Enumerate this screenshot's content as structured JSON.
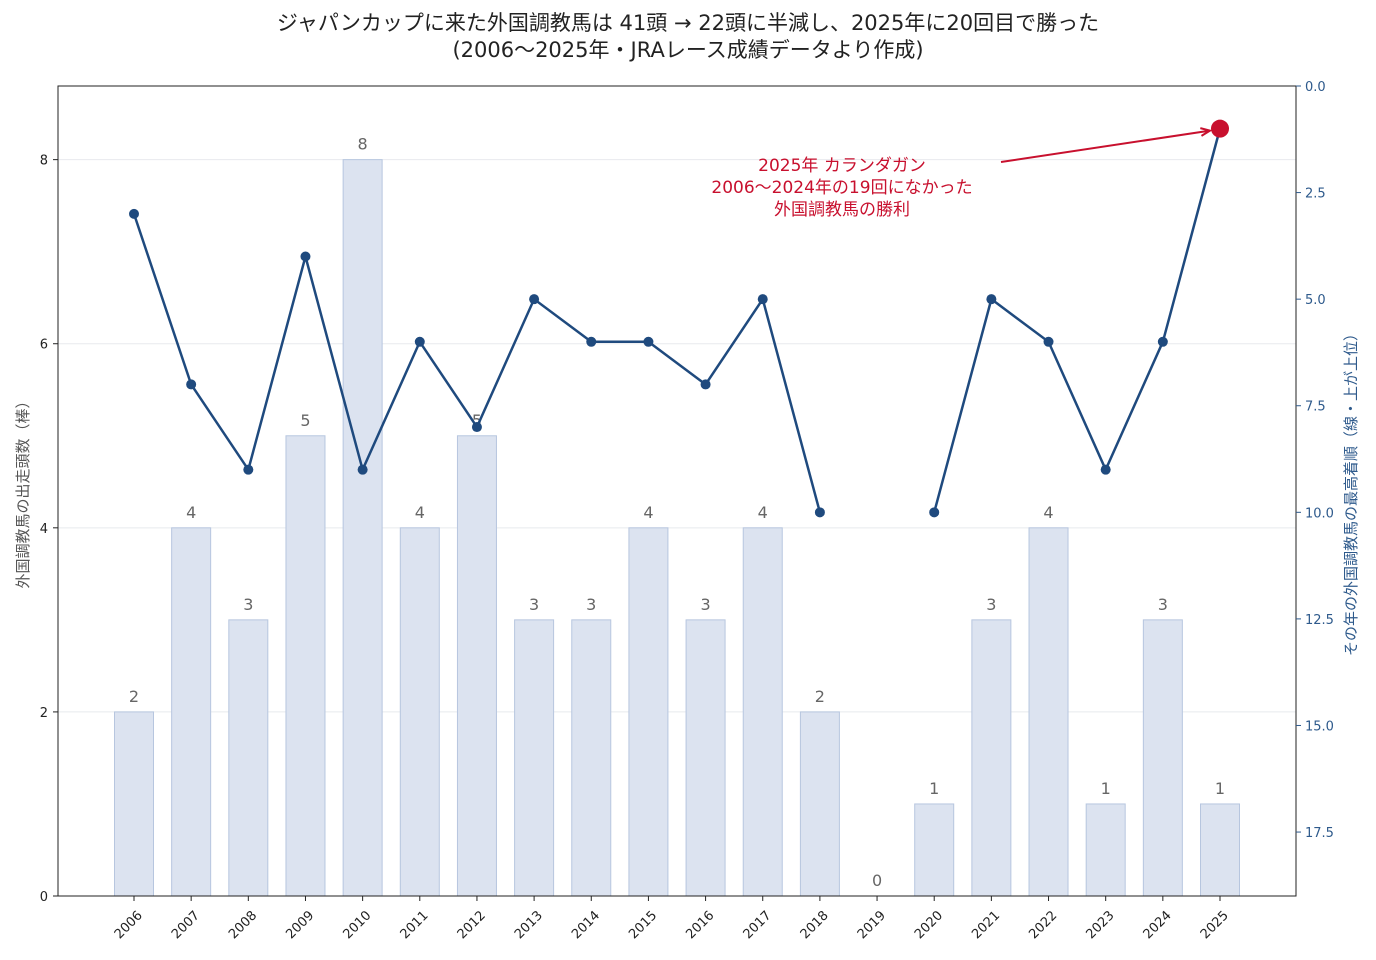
{
  "title_line1": "ジャパンカップに来た外国調教馬は 41頭 → 22頭に半減し、2025年に20回目で勝った",
  "title_line2": "(2006〜2025年・JRAレース成績データより作成)",
  "colors": {
    "bar_fill": "#dce3f0",
    "bar_stroke": "#b7c6df",
    "line": "#1f4a7e",
    "highlight": "#c8102e",
    "grid": "#e8eaee"
  },
  "chart_data": {
    "type": "bar",
    "categories": [
      "2006",
      "2007",
      "2008",
      "2009",
      "2010",
      "2011",
      "2012",
      "2013",
      "2014",
      "2015",
      "2016",
      "2017",
      "2018",
      "2019",
      "2020",
      "2021",
      "2022",
      "2023",
      "2024",
      "2025"
    ],
    "series": [
      {
        "type": "bar",
        "axis": "left",
        "values": [
          2,
          4,
          3,
          5,
          8,
          4,
          5,
          3,
          3,
          4,
          3,
          4,
          2,
          0,
          1,
          3,
          4,
          1,
          3,
          1
        ]
      },
      {
        "type": "line",
        "axis": "right",
        "values": [
          3,
          7,
          9,
          4,
          9,
          6,
          8,
          5,
          6,
          6,
          7,
          5,
          10,
          null,
          10,
          5,
          6,
          9,
          6,
          1
        ]
      }
    ],
    "ylabel_left": "外国調教馬の出走頭数（棒）",
    "ylabel_right": "その年の外国調教馬の最高着順（線・上が上位）",
    "ylim_left": [
      0,
      8.8
    ],
    "yticks_left": [
      0,
      2,
      4,
      6,
      8
    ],
    "ylim_right": [
      19,
      0
    ],
    "right_axis_inverted": true,
    "yticks_right": [
      "0.0",
      "2.5",
      "5.0",
      "7.5",
      "10.0",
      "12.5",
      "15.0",
      "17.5"
    ],
    "annotation": {
      "lines": [
        "2025年 カランダガン",
        "2006〜2024年の19回になかった",
        "外国調教馬の勝利"
      ],
      "points_to_year": "2025"
    },
    "grid": "horizontal"
  }
}
